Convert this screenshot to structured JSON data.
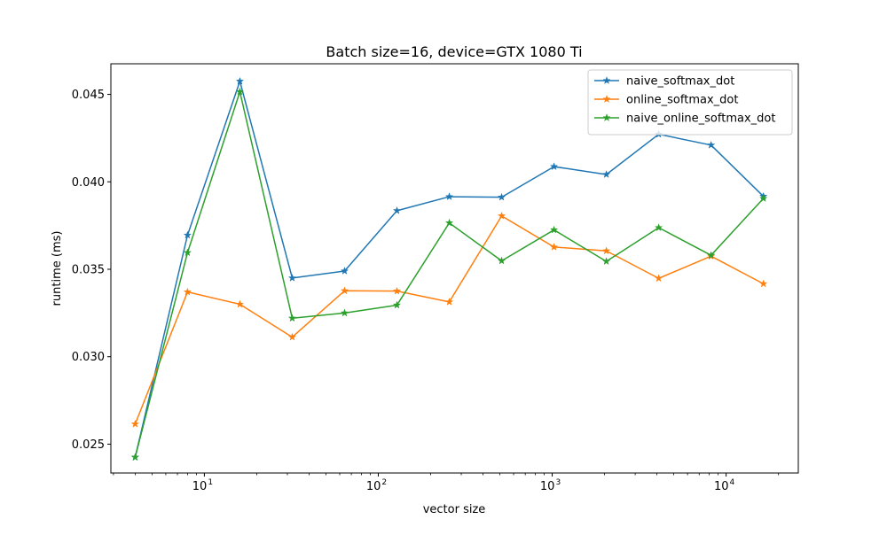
{
  "chart_data": {
    "type": "line",
    "title": "Batch size=16, device=GTX 1080 Ti",
    "xlabel": "vector size",
    "ylabel": "runtime (ms)",
    "x_scale": "log",
    "xlim": [
      2.9,
      26000
    ],
    "ylim": [
      0.02335,
      0.04675
    ],
    "x": [
      4,
      8,
      16,
      32,
      64,
      128,
      256,
      512,
      1024,
      2048,
      4096,
      8192,
      16384
    ],
    "x_ticks": [
      {
        "value": 10,
        "base": "10",
        "exp": "1"
      },
      {
        "value": 100,
        "base": "10",
        "exp": "2"
      },
      {
        "value": 1000,
        "base": "10",
        "exp": "3"
      },
      {
        "value": 10000,
        "base": "10",
        "exp": "4"
      }
    ],
    "y_ticks": [
      {
        "value": 0.025,
        "label": "0.025"
      },
      {
        "value": 0.03,
        "label": "0.030"
      },
      {
        "value": 0.035,
        "label": "0.035"
      },
      {
        "value": 0.04,
        "label": "0.040"
      },
      {
        "value": 0.045,
        "label": "0.045"
      }
    ],
    "grid": false,
    "legend_position": "top-right",
    "marker": "star",
    "series": [
      {
        "name": "naive_softmax_dot",
        "color": "#1f77b4",
        "values": [
          0.02425,
          0.03695,
          0.04575,
          0.0345,
          0.0349,
          0.03835,
          0.03915,
          0.03912,
          0.04087,
          0.04042,
          0.04272,
          0.0421,
          0.03917
        ]
      },
      {
        "name": "online_softmax_dot",
        "color": "#ff7f0e",
        "values": [
          0.02615,
          0.0337,
          0.033,
          0.03112,
          0.03377,
          0.03375,
          0.03313,
          0.03805,
          0.03627,
          0.03605,
          0.03448,
          0.03575,
          0.03417
        ]
      },
      {
        "name": "naive_online_softmax_dot",
        "color": "#2ca02c",
        "values": [
          0.02425,
          0.03595,
          0.04515,
          0.0322,
          0.0325,
          0.03295,
          0.03765,
          0.03548,
          0.03725,
          0.03545,
          0.03738,
          0.0358,
          0.03905
        ]
      }
    ]
  }
}
